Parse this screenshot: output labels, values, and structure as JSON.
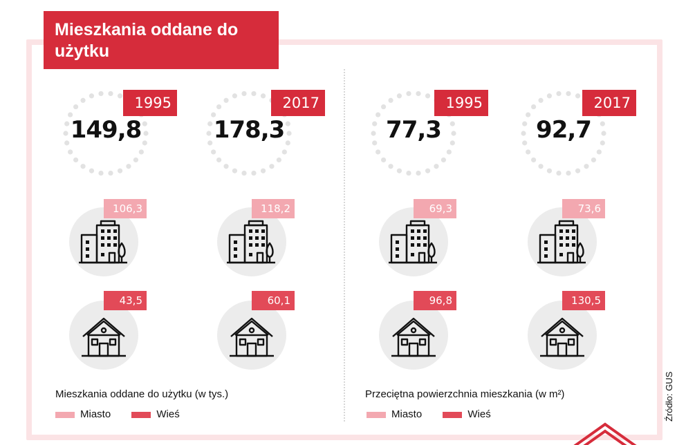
{
  "title": "Mieszkania oddane do użytku",
  "colors": {
    "accent": "#d62c3b",
    "miasto": "#f3a8b0",
    "wies": "#e24a58",
    "frame": "#fbe3e5"
  },
  "icons": [
    "apartment-building-icon",
    "house-icon"
  ],
  "sections": [
    {
      "caption": "Mieszkania oddane do użytku (w tys.)",
      "legend": {
        "miasto": "Miasto",
        "wies": "Wieś"
      },
      "cols": [
        {
          "year": "1995",
          "total": "149,8",
          "miasto": "106,3",
          "wies": "43,5"
        },
        {
          "year": "2017",
          "total": "178,3",
          "miasto": "118,2",
          "wies": "60,1"
        }
      ]
    },
    {
      "caption": "Przeciętna powierzchnia mieszkania (w m²)",
      "legend": {
        "miasto": "Miasto",
        "wies": "Wieś"
      },
      "cols": [
        {
          "year": "1995",
          "total": "77,3",
          "miasto": "69,3",
          "wies": "96,8"
        },
        {
          "year": "2017",
          "total": "92,7",
          "miasto": "73,6",
          "wies": "130,5"
        }
      ]
    }
  ],
  "source": "Źródło: GUS"
}
